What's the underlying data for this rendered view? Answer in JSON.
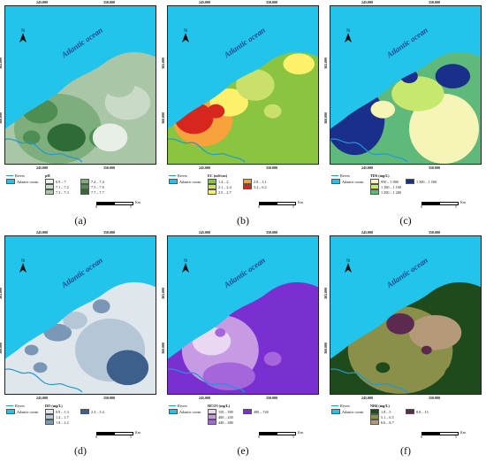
{
  "axis": {
    "x_ticks": [
      "245.000",
      "350.000"
    ],
    "y_ticks": [
      "365.000",
      "360.000"
    ]
  },
  "common": {
    "north": "N",
    "ocean_label": "Atlantic ocean",
    "rivers": "Rivers",
    "atlantic": "Atlantic ocean",
    "scale_zero": "0",
    "scale_end": "5",
    "scale_unit": "Km"
  },
  "colors": {
    "ocean": "#23c4ec",
    "river": "#1a9ad8"
  },
  "panels": [
    {
      "caption": "(a)",
      "legend_title": "pH",
      "classes": [
        {
          "label": "6.9 – 7",
          "color": "#e8efe6"
        },
        {
          "label": "7.1 – 7.2",
          "color": "#c9dbc7"
        },
        {
          "label": "7.3 – 7.3",
          "color": "#a9c6a6"
        },
        {
          "label": "7.4 – 7.4",
          "color": "#7fae7d"
        },
        {
          "label": "7.5 – 7.6",
          "color": "#4f8e52"
        },
        {
          "label": "7.7 – 7.7",
          "color": "#2e6b35"
        }
      ]
    },
    {
      "caption": "(b)",
      "legend_title": "EC (mS/cm)",
      "classes": [
        {
          "label": "1.4 – 2",
          "color": "#8bc53f"
        },
        {
          "label": "2.1 – 2.4",
          "color": "#c9e06a"
        },
        {
          "label": "2.5 – 2.7",
          "color": "#fdf06a"
        },
        {
          "label": "2.8 – 3.1",
          "color": "#f7a23c"
        },
        {
          "label": "3.2 – 6.2",
          "color": "#d7261e"
        }
      ]
    },
    {
      "caption": "(c)",
      "legend_title": "TDS (mg/L)",
      "classes": [
        {
          "label": "950 – 1 000",
          "color": "#f5f5b8"
        },
        {
          "label": "1 100 – 1 100",
          "color": "#c7e86f"
        },
        {
          "label": "1 200 – 1 200",
          "color": "#5fb97a"
        },
        {
          "label": "1 300 – 1 500",
          "color": "#1a2f8a"
        }
      ]
    },
    {
      "caption": "(d)",
      "legend_title": "DO (mg/L)",
      "classes": [
        {
          "label": "0.9 – 1.3",
          "color": "#dfe6ec"
        },
        {
          "label": "1.4 – 1.7",
          "color": "#b5c6d6"
        },
        {
          "label": "1.8 – 2.2",
          "color": "#7b97b6"
        },
        {
          "label": "2.3 – 3.4",
          "color": "#3d5f8c"
        }
      ]
    },
    {
      "caption": "(e)",
      "legend_title": "HCO3 (mg/L)",
      "classes": [
        {
          "label": "150 – 390",
          "color": "#ead8f3"
        },
        {
          "label": "400 – 430",
          "color": "#c79be3"
        },
        {
          "label": "440 – 480",
          "color": "#a565db"
        },
        {
          "label": "490 – 720",
          "color": "#7a2fd0"
        }
      ]
    },
    {
      "caption": "(f)",
      "legend_title": "NH4 (mg/L)",
      "classes": [
        {
          "label": "1.8 – 5",
          "color": "#1f4a1c"
        },
        {
          "label": "5.1 – 6.5",
          "color": "#8a8f4a"
        },
        {
          "label": "6.6 – 8.7",
          "color": "#b59a7a"
        },
        {
          "label": "8.8 – 13",
          "color": "#5b2a4e"
        }
      ]
    }
  ]
}
